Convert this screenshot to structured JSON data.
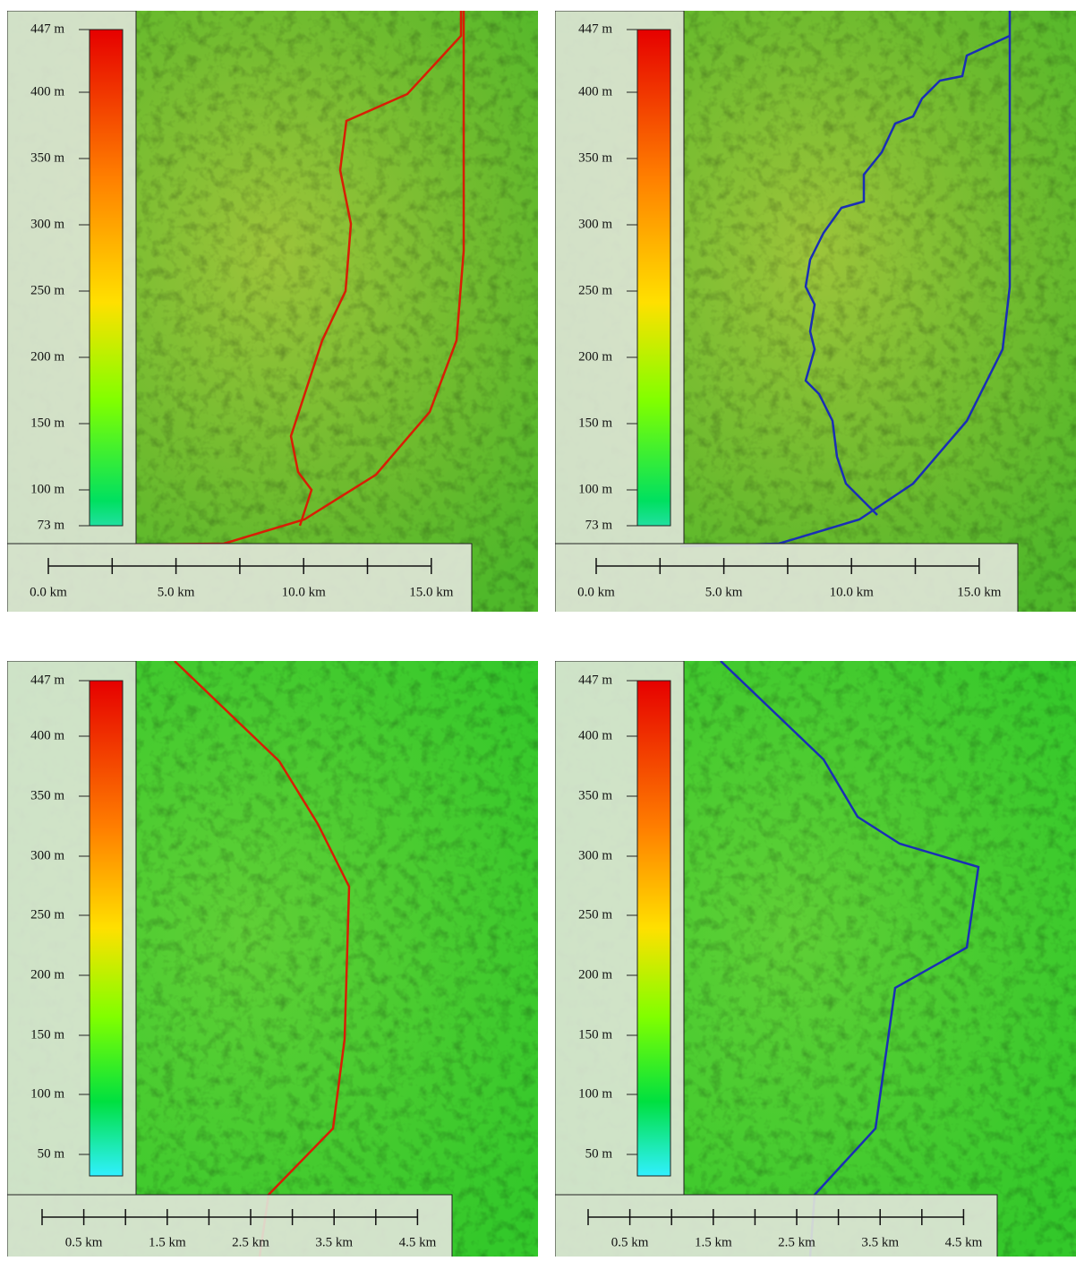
{
  "panels": [
    {
      "legend": [
        "447 m",
        "400 m",
        "350 m",
        "300 m",
        "250 m",
        "200 m",
        "150 m",
        "100 m",
        "73 m"
      ],
      "scale": [
        "0.0 km",
        "5.0 km",
        "10.0 km",
        "15.0 km"
      ]
    },
    {
      "legend": [
        "447 m",
        "400 m",
        "350 m",
        "300 m",
        "250 m",
        "200 m",
        "150 m",
        "100 m",
        "73 m"
      ],
      "scale": [
        "0.0 km",
        "5.0 km",
        "10.0 km",
        "15.0 km"
      ]
    },
    {
      "legend": [
        "447 m",
        "400 m",
        "350 m",
        "300 m",
        "250 m",
        "200 m",
        "150 m",
        "100 m",
        "50 m"
      ],
      "scale": [
        "0.5 km",
        "1.5 km",
        "2.5 km",
        "3.5 km",
        "4.5 km"
      ]
    },
    {
      "legend": [
        "447 m",
        "400 m",
        "350 m",
        "300 m",
        "250 m",
        "200 m",
        "150 m",
        "100 m",
        "50 m"
      ],
      "scale": [
        "0.5 km",
        "1.5 km",
        "2.5 km",
        "3.5 km",
        "4.5 km"
      ]
    }
  ]
}
